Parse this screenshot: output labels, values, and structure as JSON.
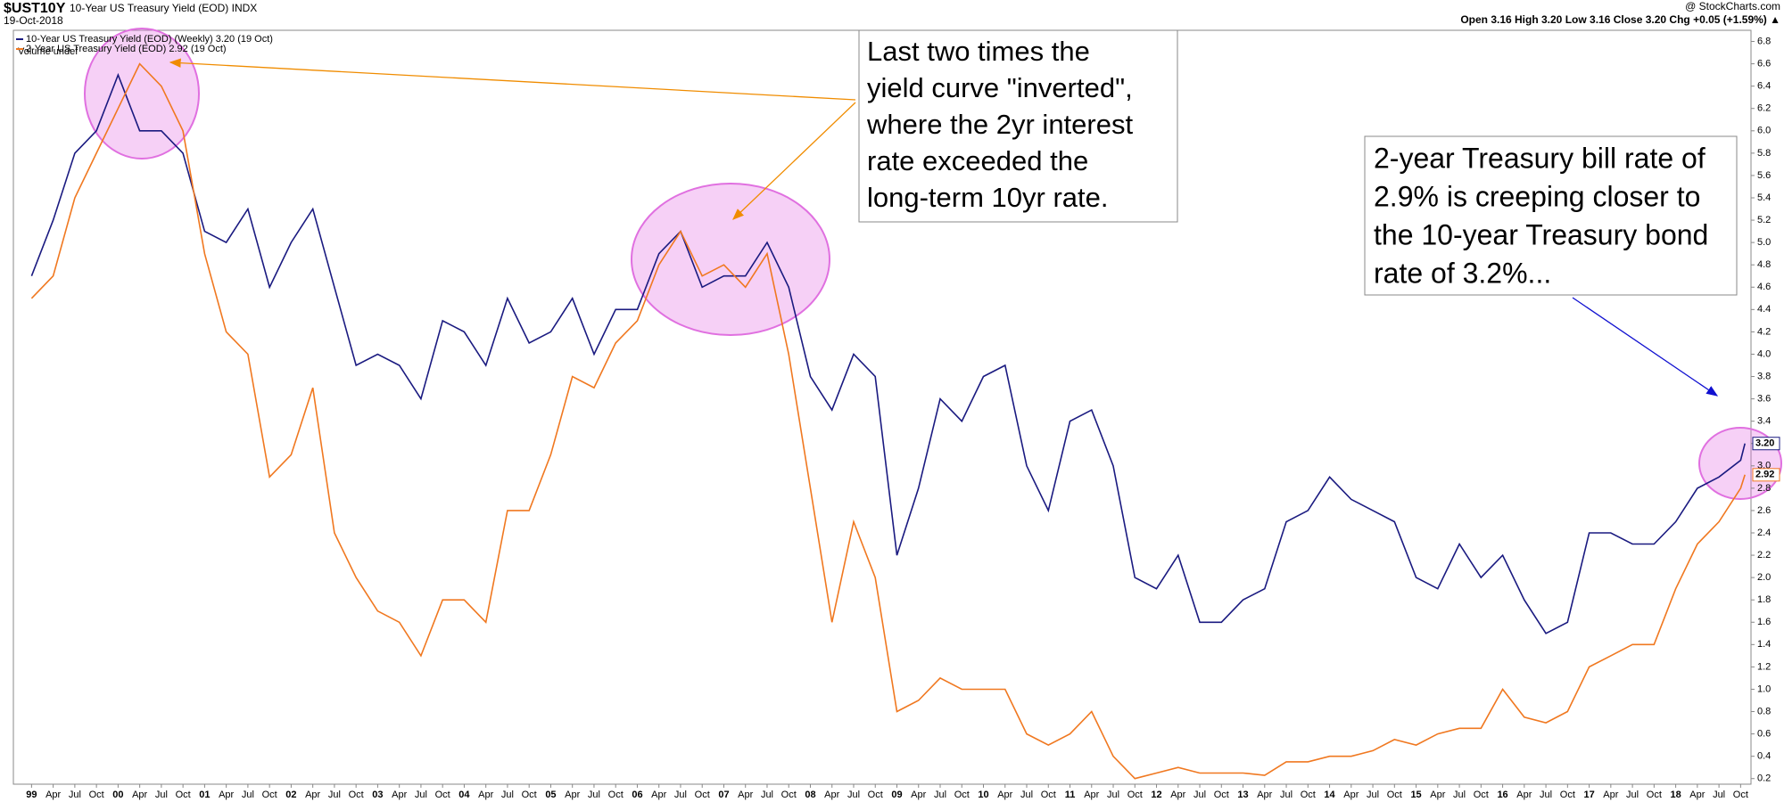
{
  "header": {
    "symbol": "$UST10Y",
    "title": "10-Year US Treasury Yield (EOD) INDX",
    "date": "19-Oct-2018",
    "source": "@ StockCharts.com",
    "quote": "Open 3.16 High 3.20 Low 3.16 Close 3.20 Chg +0.05 (+1.59%) ▲",
    "volume": "Volume undef"
  },
  "chart_data": {
    "type": "line",
    "x": [
      1999,
      1999.25,
      1999.5,
      1999.75,
      2000,
      2000.25,
      2000.5,
      2000.75,
      2001,
      2001.25,
      2001.5,
      2001.75,
      2002,
      2002.25,
      2002.5,
      2002.75,
      2003,
      2003.25,
      2003.5,
      2003.75,
      2004,
      2004.25,
      2004.5,
      2004.75,
      2005,
      2005.25,
      2005.5,
      2005.75,
      2006,
      2006.25,
      2006.5,
      2006.75,
      2007,
      2007.25,
      2007.5,
      2007.75,
      2008,
      2008.25,
      2008.5,
      2008.75,
      2009,
      2009.25,
      2009.5,
      2009.75,
      2010,
      2010.25,
      2010.5,
      2010.75,
      2011,
      2011.25,
      2011.5,
      2011.75,
      2012,
      2012.25,
      2012.5,
      2012.75,
      2013,
      2013.25,
      2013.5,
      2013.75,
      2014,
      2014.25,
      2014.5,
      2014.75,
      2015,
      2015.25,
      2015.5,
      2015.75,
      2016,
      2016.25,
      2016.5,
      2016.75,
      2017,
      2017.25,
      2017.5,
      2017.75,
      2018,
      2018.25,
      2018.5,
      2018.75,
      2018.8
    ],
    "series": [
      {
        "name": "10-Year US Treasury Yield (EOD) (Weekly) 3.20 (19 Oct)",
        "color": "#1a1a80",
        "last_label": "3.20",
        "values": [
          4.7,
          5.2,
          5.8,
          6.0,
          6.5,
          6.0,
          6.0,
          5.8,
          5.1,
          5.0,
          5.3,
          4.6,
          5.0,
          5.3,
          4.6,
          3.9,
          4.0,
          3.9,
          3.6,
          4.3,
          4.2,
          3.9,
          4.5,
          4.1,
          4.2,
          4.5,
          4.0,
          4.4,
          4.4,
          4.9,
          5.1,
          4.6,
          4.7,
          4.7,
          5.0,
          4.6,
          3.8,
          3.5,
          4.0,
          3.8,
          2.2,
          2.8,
          3.6,
          3.4,
          3.8,
          3.9,
          3.0,
          2.6,
          3.4,
          3.5,
          3.0,
          2.0,
          1.9,
          2.2,
          1.6,
          1.6,
          1.8,
          1.9,
          2.5,
          2.6,
          2.9,
          2.7,
          2.6,
          2.5,
          2.0,
          1.9,
          2.3,
          2.0,
          2.2,
          1.8,
          1.5,
          1.6,
          2.4,
          2.4,
          2.3,
          2.3,
          2.5,
          2.8,
          2.9,
          3.05,
          3.2
        ]
      },
      {
        "name": "2-Year US Treasury Yield (EOD) 2.92 (19 Oct)",
        "color": "#f07820",
        "last_label": "2.92",
        "values": [
          4.5,
          4.7,
          5.4,
          5.8,
          6.2,
          6.6,
          6.4,
          6.0,
          4.9,
          4.2,
          4.0,
          2.9,
          3.1,
          3.7,
          2.4,
          2.0,
          1.7,
          1.6,
          1.3,
          1.8,
          1.8,
          1.6,
          2.6,
          2.6,
          3.1,
          3.8,
          3.7,
          4.1,
          4.3,
          4.8,
          5.1,
          4.7,
          4.8,
          4.6,
          4.9,
          4.0,
          2.8,
          1.6,
          2.5,
          2.0,
          0.8,
          0.9,
          1.1,
          1.0,
          1.0,
          1.0,
          0.6,
          0.5,
          0.6,
          0.8,
          0.4,
          0.2,
          0.25,
          0.3,
          0.25,
          0.25,
          0.25,
          0.23,
          0.35,
          0.35,
          0.4,
          0.4,
          0.45,
          0.55,
          0.5,
          0.6,
          0.65,
          0.65,
          1.0,
          0.75,
          0.7,
          0.8,
          1.2,
          1.3,
          1.4,
          1.4,
          1.9,
          2.3,
          2.5,
          2.8,
          2.92
        ]
      }
    ],
    "xlim": [
      1998.79,
      2018.87
    ],
    "xticks": [
      {
        "value": 1999,
        "label": "99"
      },
      {
        "value": 1999.25,
        "label": "Apr"
      },
      {
        "value": 1999.5,
        "label": "Jul"
      },
      {
        "value": 1999.75,
        "label": "Oct"
      },
      {
        "value": 2000,
        "label": "00"
      },
      {
        "value": 2000.25,
        "label": "Apr"
      },
      {
        "value": 2000.5,
        "label": "Jul"
      },
      {
        "value": 2000.75,
        "label": "Oct"
      },
      {
        "value": 2001,
        "label": "01"
      },
      {
        "value": 2001.25,
        "label": "Apr"
      },
      {
        "value": 2001.5,
        "label": "Jul"
      },
      {
        "value": 2001.75,
        "label": "Oct"
      },
      {
        "value": 2002,
        "label": "02"
      },
      {
        "value": 2002.25,
        "label": "Apr"
      },
      {
        "value": 2002.5,
        "label": "Jul"
      },
      {
        "value": 2002.75,
        "label": "Oct"
      },
      {
        "value": 2003,
        "label": "03"
      },
      {
        "value": 2003.25,
        "label": "Apr"
      },
      {
        "value": 2003.5,
        "label": "Jul"
      },
      {
        "value": 2003.75,
        "label": "Oct"
      },
      {
        "value": 2004,
        "label": "04"
      },
      {
        "value": 2004.25,
        "label": "Apr"
      },
      {
        "value": 2004.5,
        "label": "Jul"
      },
      {
        "value": 2004.75,
        "label": "Oct"
      },
      {
        "value": 2005,
        "label": "05"
      },
      {
        "value": 2005.25,
        "label": "Apr"
      },
      {
        "value": 2005.5,
        "label": "Jul"
      },
      {
        "value": 2005.75,
        "label": "Oct"
      },
      {
        "value": 2006,
        "label": "06"
      },
      {
        "value": 2006.25,
        "label": "Apr"
      },
      {
        "value": 2006.5,
        "label": "Jul"
      },
      {
        "value": 2006.75,
        "label": "Oct"
      },
      {
        "value": 2007,
        "label": "07"
      },
      {
        "value": 2007.25,
        "label": "Apr"
      },
      {
        "value": 2007.5,
        "label": "Jul"
      },
      {
        "value": 2007.75,
        "label": "Oct"
      },
      {
        "value": 2008,
        "label": "08"
      },
      {
        "value": 2008.25,
        "label": "Apr"
      },
      {
        "value": 2008.5,
        "label": "Jul"
      },
      {
        "value": 2008.75,
        "label": "Oct"
      },
      {
        "value": 2009,
        "label": "09"
      },
      {
        "value": 2009.25,
        "label": "Apr"
      },
      {
        "value": 2009.5,
        "label": "Jul"
      },
      {
        "value": 2009.75,
        "label": "Oct"
      },
      {
        "value": 2010,
        "label": "10"
      },
      {
        "value": 2010.25,
        "label": "Apr"
      },
      {
        "value": 2010.5,
        "label": "Jul"
      },
      {
        "value": 2010.75,
        "label": "Oct"
      },
      {
        "value": 2011,
        "label": "11"
      },
      {
        "value": 2011.25,
        "label": "Apr"
      },
      {
        "value": 2011.5,
        "label": "Jul"
      },
      {
        "value": 2011.75,
        "label": "Oct"
      },
      {
        "value": 2012,
        "label": "12"
      },
      {
        "value": 2012.25,
        "label": "Apr"
      },
      {
        "value": 2012.5,
        "label": "Jul"
      },
      {
        "value": 2012.75,
        "label": "Oct"
      },
      {
        "value": 2013,
        "label": "13"
      },
      {
        "value": 2013.25,
        "label": "Apr"
      },
      {
        "value": 2013.5,
        "label": "Jul"
      },
      {
        "value": 2013.75,
        "label": "Oct"
      },
      {
        "value": 2014,
        "label": "14"
      },
      {
        "value": 2014.25,
        "label": "Apr"
      },
      {
        "value": 2014.5,
        "label": "Jul"
      },
      {
        "value": 2014.75,
        "label": "Oct"
      },
      {
        "value": 2015,
        "label": "15"
      },
      {
        "value": 2015.25,
        "label": "Apr"
      },
      {
        "value": 2015.5,
        "label": "Jul"
      },
      {
        "value": 2015.75,
        "label": "Oct"
      },
      {
        "value": 2016,
        "label": "16"
      },
      {
        "value": 2016.25,
        "label": "Apr"
      },
      {
        "value": 2016.5,
        "label": "Jul"
      },
      {
        "value": 2016.75,
        "label": "Oct"
      },
      {
        "value": 2017,
        "label": "17"
      },
      {
        "value": 2017.25,
        "label": "Apr"
      },
      {
        "value": 2017.5,
        "label": "Jul"
      },
      {
        "value": 2017.75,
        "label": "Oct"
      },
      {
        "value": 2018,
        "label": "18"
      },
      {
        "value": 2018.25,
        "label": "Apr"
      },
      {
        "value": 2018.5,
        "label": "Jul"
      },
      {
        "value": 2018.75,
        "label": "Oct"
      }
    ],
    "ylim": [
      0.15,
      6.9
    ],
    "yticks": [
      0.2,
      0.4,
      0.6,
      0.8,
      {
        "value": 1,
        "label": "1.0"
      },
      1.2,
      1.4,
      1.6,
      1.8,
      {
        "value": 2,
        "label": "2.0"
      },
      2.2,
      2.4,
      2.6,
      2.8,
      {
        "value": 3,
        "label": "3.0"
      },
      3.2,
      3.4,
      3.6,
      3.8,
      {
        "value": 4,
        "label": "4.0"
      },
      4.2,
      4.4,
      4.6,
      4.8,
      {
        "value": 5,
        "label": "5.0"
      },
      5.2,
      5.4,
      5.6,
      5.8,
      {
        "value": 6,
        "label": "6.0"
      },
      6.2,
      6.4,
      6.6,
      6.8
    ],
    "grid": false,
    "annotations": [
      {
        "color": "#f08c00",
        "lines": [
          "Last two times the",
          "yield curve \"inverted\",",
          "where the 2yr interest",
          "rate exceeded the",
          "long-term 10yr rate."
        ]
      },
      {
        "color": "#1010d0",
        "lines": [
          "2-year Treasury bill rate of",
          "2.9% is creeping closer to",
          "the 10-year Treasury bond",
          "rate of 3.2%..."
        ]
      }
    ]
  }
}
